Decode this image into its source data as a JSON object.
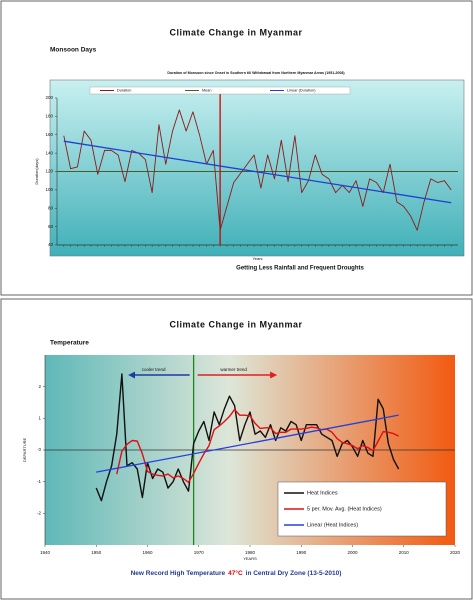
{
  "chart_data": [
    {
      "type": "line",
      "title": "Climate Change in Myanmar",
      "subtitle": "Monsoon Days",
      "chart_title": "Duration of Monsoon since Onset in Southern till Withdrawal from Northern Myanmar Areas (1951-2008)",
      "y_label": "Duration(days)",
      "x_label": "Years",
      "annotation": "Getting Less Rainfall and Frequent Droughts",
      "annotation_color": "#e00000",
      "legend": "top",
      "grid": false,
      "xlim": [
        1950,
        2009
      ],
      "ylim": [
        40,
        200
      ],
      "yticks": [
        40,
        60,
        80,
        100,
        120,
        140,
        160,
        180,
        200
      ],
      "x": [
        1951,
        1952,
        1953,
        1954,
        1955,
        1956,
        1957,
        1958,
        1959,
        1960,
        1961,
        1962,
        1963,
        1964,
        1965,
        1966,
        1967,
        1968,
        1969,
        1970,
        1971,
        1972,
        1973,
        1974,
        1975,
        1976,
        1977,
        1978,
        1979,
        1980,
        1981,
        1982,
        1983,
        1984,
        1985,
        1986,
        1987,
        1988,
        1989,
        1990,
        1991,
        1992,
        1993,
        1994,
        1995,
        1996,
        1997,
        1998,
        1999,
        2000,
        2001,
        2002,
        2003,
        2004,
        2005,
        2006,
        2007,
        2008
      ],
      "series": [
        {
          "name": "Duration",
          "color": "#8b1a1a",
          "values": [
            159,
            123,
            125,
            164,
            154,
            117,
            143,
            143,
            138,
            109,
            143,
            140,
            133,
            97,
            171,
            128,
            164,
            187,
            164,
            185,
            159,
            128,
            143,
            56,
            82,
            108,
            118,
            128,
            138,
            102,
            138,
            112,
            154,
            109,
            159,
            97,
            110,
            138,
            117,
            112,
            97,
            105,
            97,
            110,
            82,
            112,
            108,
            97,
            128,
            87,
            82,
            72,
            56,
            87,
            112,
            108,
            110,
            100
          ]
        }
      ],
      "reference": {
        "name": "Mean",
        "color": "#4b5d2a",
        "value": 120
      },
      "trend": {
        "name": "Linear (Duration)",
        "color": "#1f3fd0",
        "x": [
          1951,
          2008
        ],
        "values": [
          153,
          86
        ]
      },
      "divider_x": 1974,
      "divider_color": "#d00000"
    },
    {
      "type": "line",
      "title": "Climate Change in Myanmar",
      "subtitle": "Temperature",
      "y_label": "DEPARTURE",
      "x_label": "YEARS",
      "annotation_parts": [
        "New Record High Temperature",
        "47°C",
        "in Central Dry Zone (13-5-2010)"
      ],
      "annotation_colors": [
        "#1f3a93",
        "#e00000",
        "#1f3a93"
      ],
      "arrow_labels": [
        {
          "text": "cooler trend",
          "color": "#1f3aa0"
        },
        {
          "text": "warmer trend",
          "color": "#e02020"
        }
      ],
      "legend": "lower right",
      "grid": false,
      "xlim": [
        1940,
        2020
      ],
      "xticks": [
        1940,
        1950,
        1960,
        1970,
        1980,
        1990,
        2000,
        2010,
        2020
      ],
      "ylim": [
        -3,
        3
      ],
      "yticks": [
        -2,
        -1,
        0,
        1,
        2
      ],
      "x": [
        1950,
        1951,
        1952,
        1953,
        1954,
        1955,
        1956,
        1957,
        1958,
        1959,
        1960,
        1961,
        1962,
        1963,
        1964,
        1965,
        1966,
        1967,
        1968,
        1969,
        1970,
        1971,
        1972,
        1973,
        1974,
        1975,
        1976,
        1977,
        1978,
        1979,
        1980,
        1981,
        1982,
        1983,
        1984,
        1985,
        1986,
        1987,
        1988,
        1989,
        1990,
        1991,
        1992,
        1993,
        1994,
        1995,
        1996,
        1997,
        1998,
        1999,
        2000,
        2001,
        2002,
        2003,
        2004,
        2005,
        2006,
        2007,
        2008,
        2009
      ],
      "series": [
        {
          "name": "Heat Indices",
          "color": "#111111",
          "values": [
            -1.2,
            -1.6,
            -1.0,
            -0.5,
            0.5,
            2.4,
            -0.5,
            -0.4,
            -0.6,
            -1.5,
            -0.4,
            -0.9,
            -0.6,
            -0.7,
            -1.2,
            -1.0,
            -0.6,
            -1.0,
            -1.3,
            0.2,
            0.6,
            0.9,
            0.3,
            1.2,
            0.8,
            1.3,
            1.7,
            1.4,
            0.3,
            0.8,
            1.2,
            0.5,
            0.6,
            0.4,
            0.8,
            0.3,
            0.7,
            0.6,
            0.9,
            0.8,
            0.3,
            0.8,
            0.8,
            0.8,
            0.5,
            0.4,
            0.3,
            -0.2,
            0.2,
            0.3,
            0.1,
            -0.2,
            0.3,
            -0.1,
            -0.2,
            1.6,
            1.3,
            0.2,
            -0.3,
            -0.6
          ]
        },
        {
          "name": "5 per. Mov. Avg. (Heat Indices)",
          "color": "#e01010",
          "values": [
            null,
            null,
            null,
            null,
            -0.76,
            -0.04,
            0.18,
            0.3,
            0.28,
            -0.12,
            -0.68,
            -0.76,
            -0.8,
            -0.82,
            -0.76,
            -0.88,
            -0.82,
            -0.9,
            -1.02,
            -0.74,
            -0.42,
            -0.12,
            0.14,
            0.64,
            0.76,
            0.9,
            1.06,
            1.28,
            1.1,
            1.1,
            1.08,
            0.84,
            0.68,
            0.7,
            0.7,
            0.52,
            0.56,
            0.56,
            0.66,
            0.66,
            0.66,
            0.68,
            0.72,
            0.7,
            0.64,
            0.66,
            0.56,
            0.36,
            0.24,
            0.2,
            0.14,
            0.04,
            0.14,
            0.08,
            -0.02,
            0.28,
            0.58,
            0.56,
            0.52,
            0.44
          ]
        }
      ],
      "trend": {
        "name": "Linear (Heat Indices)",
        "color": "#2040e0",
        "x": [
          1950,
          2009
        ],
        "values": [
          -0.7,
          1.1
        ]
      },
      "divider_x": 1969,
      "divider_color": "#1a8a1a"
    }
  ]
}
